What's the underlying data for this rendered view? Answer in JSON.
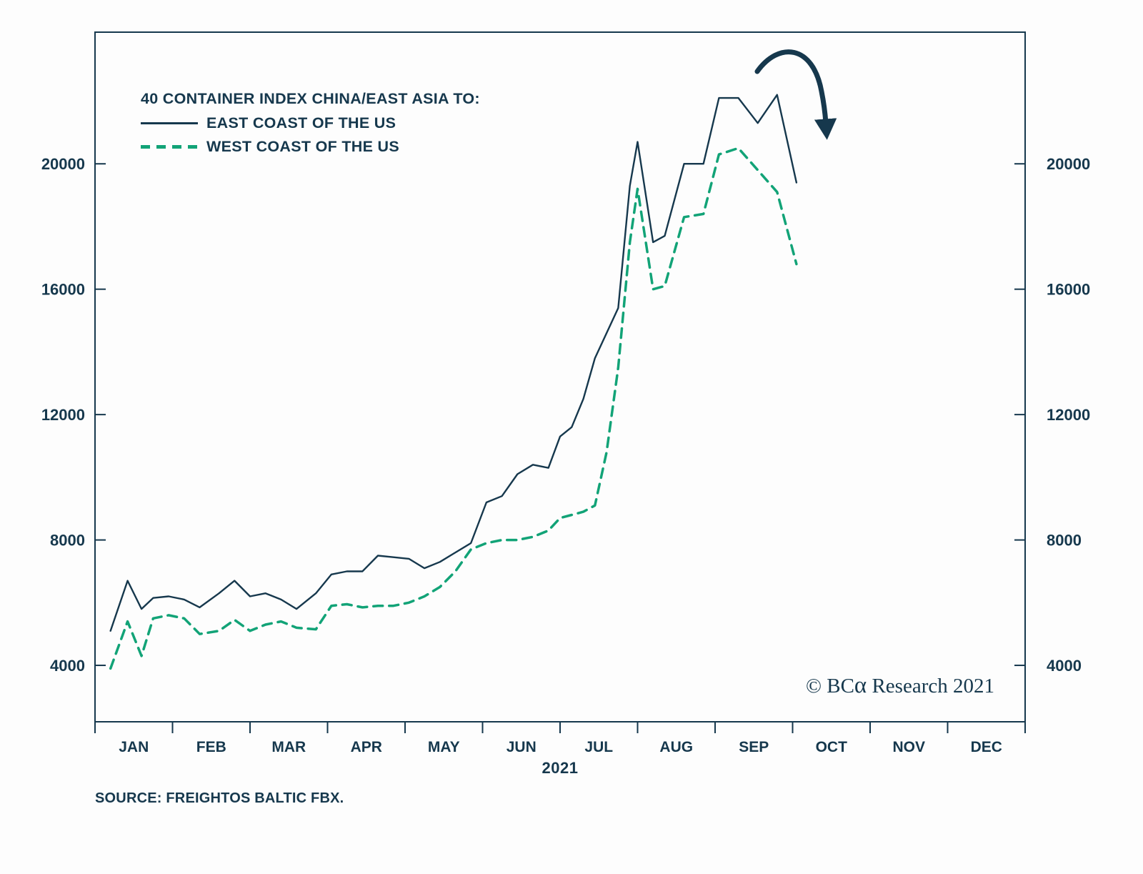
{
  "colors": {
    "east": "#16384d",
    "west": "#12a377",
    "axis": "#16384d",
    "text": "#16384d",
    "background": "#fdfdfd"
  },
  "legend": {
    "title": "40 CONTAINER INDEX CHINA/EAST ASIA TO:",
    "east_label": "EAST COAST OF THE US",
    "west_label": "WEST COAST OF THE US"
  },
  "x_axis": {
    "months": [
      "JAN",
      "FEB",
      "MAR",
      "APR",
      "MAY",
      "JUN",
      "JUL",
      "AUG",
      "SEP",
      "OCT",
      "NOV",
      "DEC"
    ],
    "year": "2021"
  },
  "watermark": {
    "prefix": "© BC",
    "alpha": "α",
    "suffix": " Research 2021"
  },
  "source": "SOURCE: FREIGHTOS BALTIC FBX.",
  "chart_data": {
    "type": "line",
    "title": "40 Container Index China/East Asia to East Coast vs West Coast of the US",
    "x_unit": "months of 2021 (0 = Jan 1, points roughly weekly)",
    "xlim": [
      0,
      12
    ],
    "ylim": [
      2200,
      24200
    ],
    "y_ticks": [
      4000,
      8000,
      12000,
      16000,
      20000
    ],
    "x_tick_labels": [
      "JAN",
      "FEB",
      "MAR",
      "APR",
      "MAY",
      "JUN",
      "JUL",
      "AUG",
      "SEP",
      "OCT",
      "NOV",
      "DEC"
    ],
    "grid": false,
    "legend_position": "top-left inside plot",
    "annotation": "thick curved arrow pointing down at the Sep-Oct peak",
    "x": [
      0.2,
      0.42,
      0.6,
      0.75,
      0.95,
      1.15,
      1.35,
      1.6,
      1.8,
      2,
      2.2,
      2.4,
      2.6,
      2.85,
      3.05,
      3.25,
      3.45,
      3.65,
      3.85,
      4.05,
      4.25,
      4.45,
      4.65,
      4.85,
      5.05,
      5.25,
      5.45,
      5.65,
      5.85,
      6,
      6.15,
      6.3,
      6.45,
      6.6,
      6.75,
      6.9,
      7,
      7.2,
      7.35,
      7.6,
      7.85,
      8.05,
      8.3,
      8.55,
      8.8,
      9.05
    ],
    "series": [
      {
        "name": "EAST COAST OF THE US",
        "style": "solid",
        "color": "#16384d",
        "values": [
          5100,
          6700,
          5800,
          6150,
          6200,
          6100,
          5850,
          6300,
          6700,
          6200,
          6300,
          6100,
          5800,
          6300,
          6900,
          7000,
          7000,
          7500,
          7450,
          7400,
          7100,
          7300,
          7600,
          7900,
          9200,
          9400,
          10100,
          10400,
          10300,
          11300,
          11600,
          12500,
          13800,
          14600,
          15400,
          19300,
          20700,
          17500,
          17700,
          20000,
          20000,
          22100,
          22100,
          21300,
          22200,
          19400
        ]
      },
      {
        "name": "WEST COAST OF THE US",
        "style": "dashed",
        "color": "#12a377",
        "values": [
          3900,
          5400,
          4300,
          5500,
          5600,
          5500,
          5000,
          5100,
          5450,
          5100,
          5300,
          5400,
          5200,
          5150,
          5900,
          5950,
          5850,
          5900,
          5900,
          6000,
          6200,
          6500,
          7000,
          7700,
          7900,
          8000,
          8000,
          8100,
          8300,
          8700,
          8800,
          8900,
          9100,
          10800,
          13500,
          17500,
          19200,
          16000,
          16100,
          18300,
          18400,
          20300,
          20500,
          19800,
          19100,
          16800
        ]
      }
    ]
  }
}
